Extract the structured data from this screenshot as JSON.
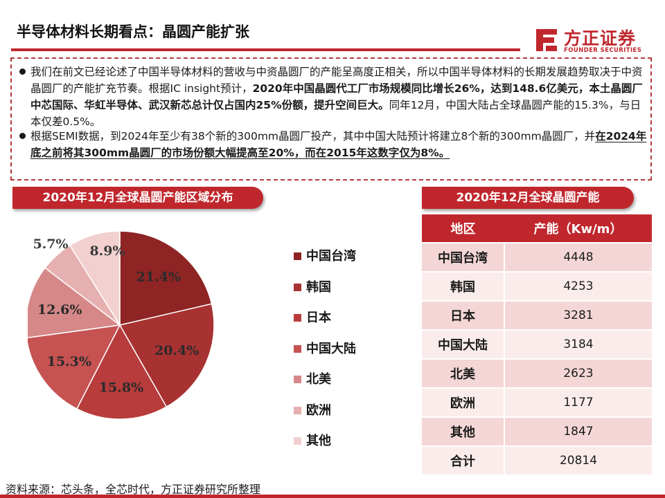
{
  "header": {
    "title": "半导体材料长期看点：晶圆产能扩张",
    "brand_cn": "方正证券",
    "brand_en": "FOUNDER SECURITIES",
    "accent_color": "#c0272d"
  },
  "paragraphs": {
    "p1_a": "我们在前文已经论述了中国半导体材料的营收与中资晶圆厂的产能呈高度正相关，所以中国半导体材料的长期发展趋势取决于中资晶圆厂的产能扩充节奏。根据IC insight预计，",
    "p1_b": "2020年中国晶圆代工厂市场规模同比增长26%，达到148.6亿美元，本土晶圆厂中芯国际、华虹半导体、武汉新芯总计仅占国内25%份额，提升空间巨大。",
    "p1_c": "同年12月，中国大陆占全球晶圆产能的15.3%，与日本仅差0.5%。",
    "p2_a": "根据SEMI数据，到2024年至少有38个新的300mm晶圆厂投产，其中中国大陆预计将建立8个新的300mm晶圆厂，并",
    "p2_b": "在2024年底之前将其300mm晶圆厂的市场份额大幅提高至20%，而在2015年这数字仅为8%。"
  },
  "pie_section": {
    "title": "2020年12月全球晶圆产能区域分布"
  },
  "table_section": {
    "title": "2020年12月全球晶圆产能"
  },
  "chart_data": {
    "type": "pie",
    "title": "2020年12月全球晶圆产能区域分布",
    "categories": [
      "中国台湾",
      "韩国",
      "日本",
      "中国大陆",
      "北美",
      "欧洲",
      "其他"
    ],
    "values": [
      21.4,
      20.4,
      15.8,
      15.3,
      12.6,
      5.7,
      8.9
    ],
    "labels": [
      "21.4%",
      "20.4%",
      "15.8%",
      "15.3%",
      "12.6%",
      "5.7%",
      "8.9%"
    ],
    "colors": [
      "#8e2424",
      "#a83232",
      "#b83c3c",
      "#c65252",
      "#d68888",
      "#e6b0b0",
      "#f2d0d0"
    ],
    "legend_position": "right"
  },
  "table": {
    "headers": [
      "地区",
      "产能（Kw/m）"
    ],
    "rows": [
      [
        "中国台湾",
        "4448"
      ],
      [
        "韩国",
        "4253"
      ],
      [
        "日本",
        "3281"
      ],
      [
        "中国大陆",
        "3184"
      ],
      [
        "北美",
        "2623"
      ],
      [
        "欧洲",
        "1177"
      ],
      [
        "其他",
        "1847"
      ],
      [
        "合计",
        "20814"
      ]
    ]
  },
  "footer": {
    "source": "资料来源：芯头条，全芯时代，方正证券研究所整理"
  }
}
